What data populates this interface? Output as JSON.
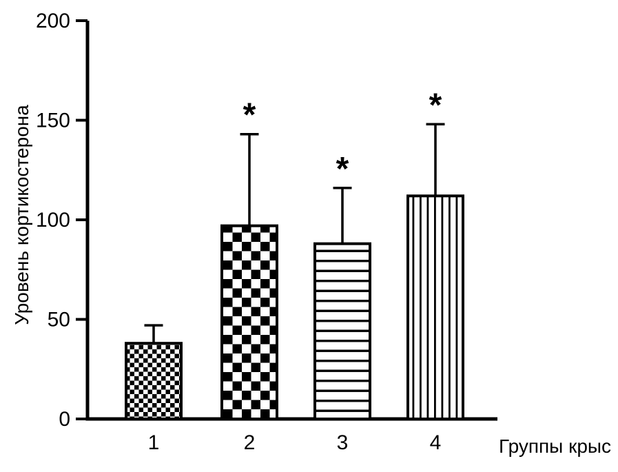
{
  "chart_data": {
    "type": "bar",
    "title": "",
    "xlabel": "Группы крыс",
    "ylabel": "Уровень кортикостерона",
    "categories": [
      "1",
      "2",
      "3",
      "4"
    ],
    "values": [
      38,
      97,
      88,
      112
    ],
    "errors_plus": [
      9,
      46,
      28,
      36
    ],
    "annotations": [
      "",
      "*",
      "*",
      "*"
    ],
    "ylim": [
      0,
      200
    ],
    "yticks": [
      0,
      50,
      100,
      150,
      200
    ],
    "grid": false,
    "legend": "none",
    "bar_patterns": [
      "checker-small",
      "checker-large",
      "horizontal-lines",
      "vertical-lines"
    ],
    "bar_fill": "#ffffff",
    "stroke_color": "#000000"
  }
}
